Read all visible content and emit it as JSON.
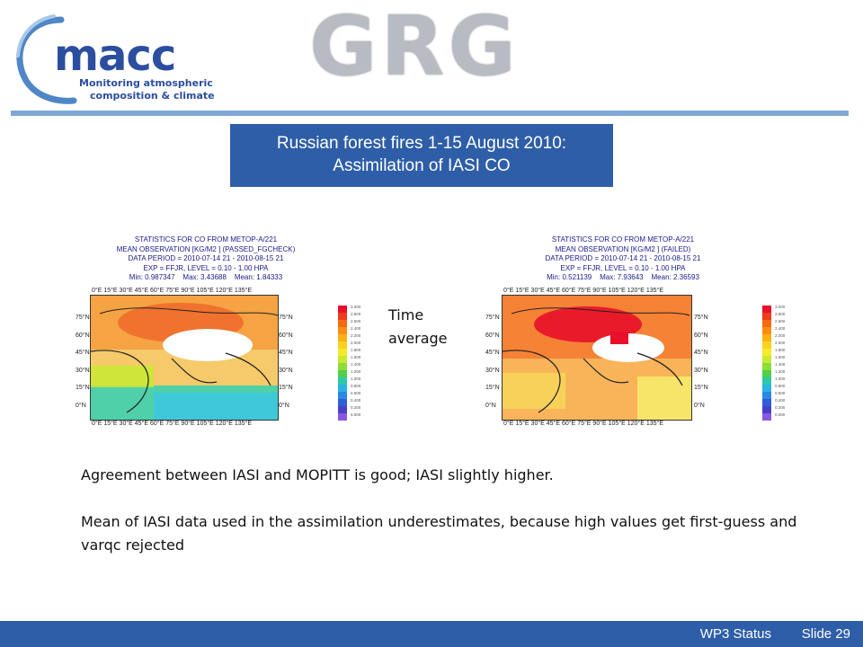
{
  "header": {
    "macc_logo_text": "macc",
    "macc_tagline_line1": "Monitoring atmospheric",
    "macc_tagline_line2": "composition & climate",
    "grg_logo_text": "GRG"
  },
  "title": {
    "line1": "Russian forest fires 1-15 August 2010:",
    "line2": "Assimilation of IASI CO"
  },
  "left_panel": {
    "stats_lines": [
      "STATISTICS FOR  CO  FROM METOP-A/221",
      "MEAN OBSERVATION [KG/M2 ] (PASSED_FGCHECK)",
      "DATA PERIOD = 2010-07-14 21 - 2010-08-15 21",
      "EXP = FFJR, LEVEL = 0.10 - 1.00 HPA"
    ],
    "min_label": "Min:",
    "min_value": "0.987347",
    "max_label": "Max:",
    "max_value": "3.43688",
    "mean_label": "Mean:",
    "mean_value": "1.84333"
  },
  "right_panel": {
    "stats_lines": [
      "STATISTICS FOR  CO  FROM METOP-A/221",
      "MEAN OBSERVATION [KG/M2 ] (FAILED)",
      "DATA PERIOD = 2010-07-14 21 - 2010-08-15 21",
      "EXP = FFJR, LEVEL = 0.10 - 1.00 HPA"
    ],
    "min_label": "Min:",
    "min_value": "0.521139",
    "max_label": "Max:",
    "max_value": "7.93643",
    "mean_label": "Mean:",
    "mean_value": "2.36593"
  },
  "map_axes": {
    "lon_ticks": [
      "0°E",
      "15°E",
      "30°E",
      "45°E",
      "60°E",
      "75°E",
      "90°E",
      "105°E",
      "120°E",
      "135°E"
    ],
    "lat_ticks": [
      "75°N",
      "60°N",
      "45°N",
      "30°N",
      "15°N",
      "0°N"
    ]
  },
  "colorbar": {
    "labels": [
      "3.000",
      "2.800",
      "2.600",
      "2.400",
      "2.200",
      "2.000",
      "1.800",
      "1.600",
      "1.400",
      "1.200",
      "1.000",
      "0.800",
      "0.600",
      "0.400",
      "0.200",
      "0.000"
    ],
    "colors": [
      "#e8102a",
      "#f03a1e",
      "#f76a14",
      "#fb8d10",
      "#fdb214",
      "#fcd21c",
      "#f6ea2a",
      "#c8ea30",
      "#8fdc38",
      "#4fd048",
      "#2ec8a8",
      "#28b6e0",
      "#2a88e8",
      "#2f5ed8",
      "#4a40c8",
      "#8a58e0"
    ]
  },
  "time_average": {
    "line1": "Time",
    "line2": "average"
  },
  "body": {
    "para1": "Agreement between IASI and MOPITT is good; IASI slightly higher.",
    "para2": "Mean of IASI data used in the assimilation underestimates, because high values get first-guess and varqc rejected"
  },
  "footer": {
    "label": "WP3 Status",
    "slide": "Slide 29"
  }
}
